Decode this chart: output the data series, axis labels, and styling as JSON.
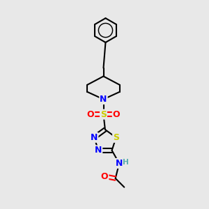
{
  "bg_color": "#e8e8e8",
  "bond_color": "#000000",
  "N_color": "#0000ff",
  "S_color": "#cccc00",
  "O_color": "#ff0000",
  "H_color": "#5aafaf",
  "line_width": 1.5,
  "font_size_atom": 9,
  "fig_w": 3.0,
  "fig_h": 3.0,
  "dpi": 100,
  "xlim": [
    0,
    10
  ],
  "ylim": [
    0,
    10
  ]
}
